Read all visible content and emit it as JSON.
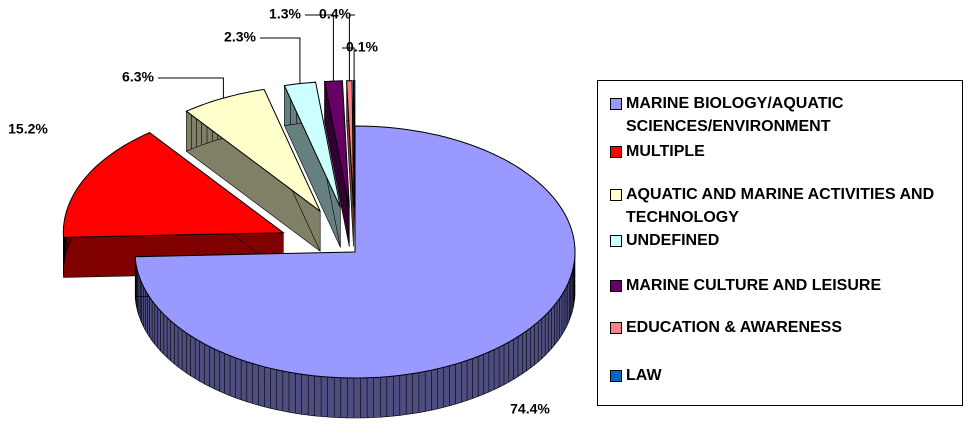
{
  "chart_data": {
    "type": "pie",
    "categories": [
      "MARINE BIOLOGY/AQUATIC SCIENCES/ENVIRONMENT",
      "MULTIPLE",
      "AQUATIC AND MARINE ACTIVITIES AND TECHNOLOGY",
      "UNDEFINED",
      "MARINE CULTURE AND LEISURE",
      "EDUCATION & AWARENESS",
      "LAW"
    ],
    "values": [
      74.4,
      15.2,
      6.3,
      2.3,
      1.3,
      0.4,
      0.1
    ],
    "value_labels": [
      "74.4%",
      "15.2%",
      "6.3%",
      "2.3%",
      "1.3%",
      "0.4%",
      "0.1%"
    ],
    "colors": [
      "#9999ff",
      "#ff0000",
      "#ffffcc",
      "#ccffff",
      "#660066",
      "#ff8080",
      "#0066cc"
    ],
    "legend": "right"
  }
}
